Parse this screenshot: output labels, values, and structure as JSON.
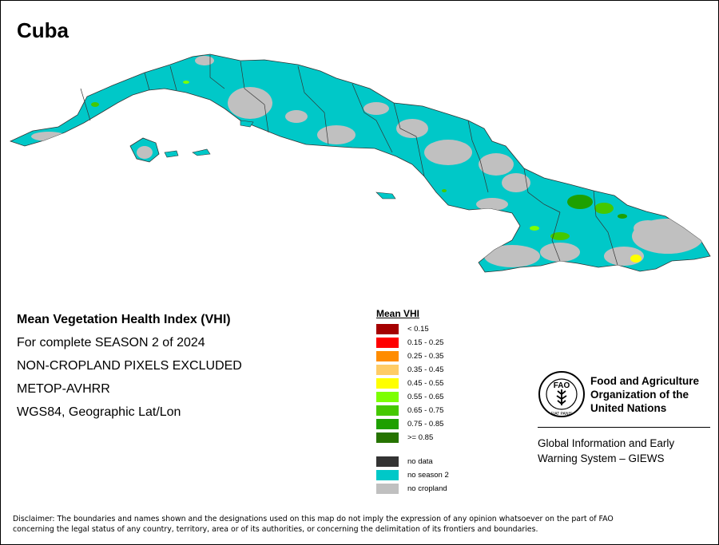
{
  "map": {
    "title": "Cuba"
  },
  "info": {
    "line1": "Mean Vegetation Health Index (VHI)",
    "line2": "For complete SEASON 2 of 2024",
    "line3": "NON-CROPLAND PIXELS EXCLUDED",
    "line4": "METOP-AVHRR",
    "line5": "WGS84, Geographic Lat/Lon"
  },
  "legend": {
    "title": "Mean VHI",
    "classes": [
      {
        "label": "< 0.15",
        "color": "#a50000"
      },
      {
        "label": "0.15 - 0.25",
        "color": "#ff0000"
      },
      {
        "label": "0.25 - 0.35",
        "color": "#ff8c00"
      },
      {
        "label": "0.35 - 0.45",
        "color": "#ffcc66"
      },
      {
        "label": "0.45 - 0.55",
        "color": "#ffff00"
      },
      {
        "label": "0.55 - 0.65",
        "color": "#7cff00"
      },
      {
        "label": "0.65 - 0.75",
        "color": "#45c800"
      },
      {
        "label": "0.75 - 0.85",
        "color": "#1ea000"
      },
      {
        "label": ">= 0.85",
        "color": "#267300"
      }
    ],
    "special": [
      {
        "label": "no data",
        "color": "#333333"
      },
      {
        "label": "no season 2",
        "color": "#00c8c8"
      },
      {
        "label": "no cropland",
        "color": "#c0c0c0"
      }
    ]
  },
  "fao": {
    "name_line1": "Food and Agriculture",
    "name_line2": "Organization of the",
    "name_line3": "United Nations",
    "logo_text": "FAO",
    "logo_motto": "FIAT PANIS",
    "giews_line1": "Global Information and Early",
    "giews_line2": "Warning System – GIEWS"
  },
  "disclaimer": {
    "line1": "Disclaimer: The boundaries and names shown and the designations used on this map do not imply the expression of any opinion whatsoever on the part of FAO",
    "line2": "concerning the legal status of any country, territory, area or of its authorities, or concerning the delimitation of its frontiers and boundaries."
  }
}
